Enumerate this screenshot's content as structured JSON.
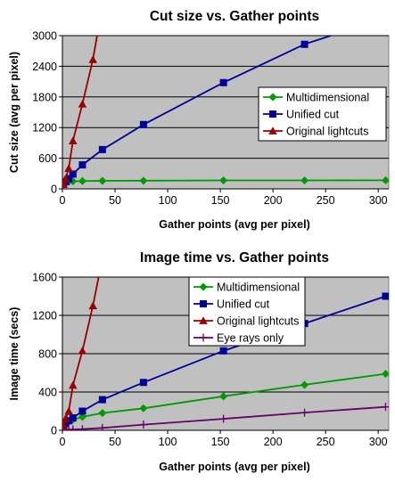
{
  "chart_data": [
    {
      "type": "line",
      "title": "Cut size vs. Gather points",
      "xlabel": "Gather points (avg per pixel)",
      "ylabel": "Cut size (avg per pixel)",
      "xlim": [
        0,
        310
      ],
      "ylim": [
        0,
        3000
      ],
      "xticks": [
        0,
        50,
        100,
        150,
        200,
        250,
        300
      ],
      "yticks": [
        0,
        600,
        1200,
        1800,
        2400,
        3000
      ],
      "grid": "horizontal",
      "plot_background": "#c0c0c0",
      "legend_position": "right",
      "series": [
        {
          "name": "Multidimensional",
          "color": "#009900",
          "marker": "diamond",
          "x": [
            1,
            3,
            6,
            10,
            19,
            38,
            77,
            153,
            230,
            307
          ],
          "y": [
            110,
            130,
            140,
            148,
            152,
            158,
            160,
            165,
            165,
            168
          ]
        },
        {
          "name": "Unified cut",
          "color": "#000099",
          "marker": "square",
          "x": [
            1,
            3,
            6,
            10,
            19,
            38,
            77,
            153,
            230,
            307
          ],
          "y": [
            90,
            140,
            200,
            290,
            470,
            770,
            1260,
            2080,
            2830,
            3350
          ]
        },
        {
          "name": "Original lightcuts",
          "color": "#990000",
          "marker": "triangle",
          "x": [
            1,
            3,
            6,
            10,
            19,
            29,
            38
          ],
          "y": [
            90,
            200,
            400,
            940,
            1660,
            2530,
            3600
          ]
        }
      ]
    },
    {
      "type": "line",
      "title": "Image time vs. Gather points",
      "xlabel": "Gather points (avg per pixel)",
      "ylabel": "Image time (secs)",
      "xlim": [
        0,
        310
      ],
      "ylim": [
        0,
        1600
      ],
      "xticks": [
        0,
        50,
        100,
        150,
        200,
        250,
        300
      ],
      "yticks": [
        0,
        400,
        800,
        1200,
        1600
      ],
      "grid": "horizontal",
      "plot_background": "#c0c0c0",
      "legend_position": "top-center",
      "series": [
        {
          "name": "Multidimensional",
          "color": "#009900",
          "marker": "diamond",
          "x": [
            1,
            3,
            6,
            10,
            19,
            38,
            77,
            153,
            230,
            307
          ],
          "y": [
            40,
            60,
            90,
            110,
            140,
            180,
            230,
            355,
            475,
            590
          ]
        },
        {
          "name": "Unified cut",
          "color": "#000099",
          "marker": "square",
          "x": [
            1,
            3,
            6,
            10,
            19,
            38,
            77,
            153,
            230,
            307
          ],
          "y": [
            45,
            70,
            100,
            130,
            200,
            320,
            500,
            830,
            1115,
            1400
          ]
        },
        {
          "name": "Original lightcuts",
          "color": "#990000",
          "marker": "triangle",
          "x": [
            1,
            3,
            6,
            10,
            19,
            29,
            38
          ],
          "y": [
            45,
            120,
            200,
            470,
            830,
            1300,
            1800
          ]
        },
        {
          "name": "Eye rays only",
          "color": "#660066",
          "marker": "plus",
          "x": [
            1,
            3,
            6,
            10,
            19,
            38,
            77,
            153,
            230,
            307
          ],
          "y": [
            5,
            6,
            7,
            9,
            12,
            25,
            60,
            120,
            185,
            245
          ]
        }
      ]
    }
  ]
}
